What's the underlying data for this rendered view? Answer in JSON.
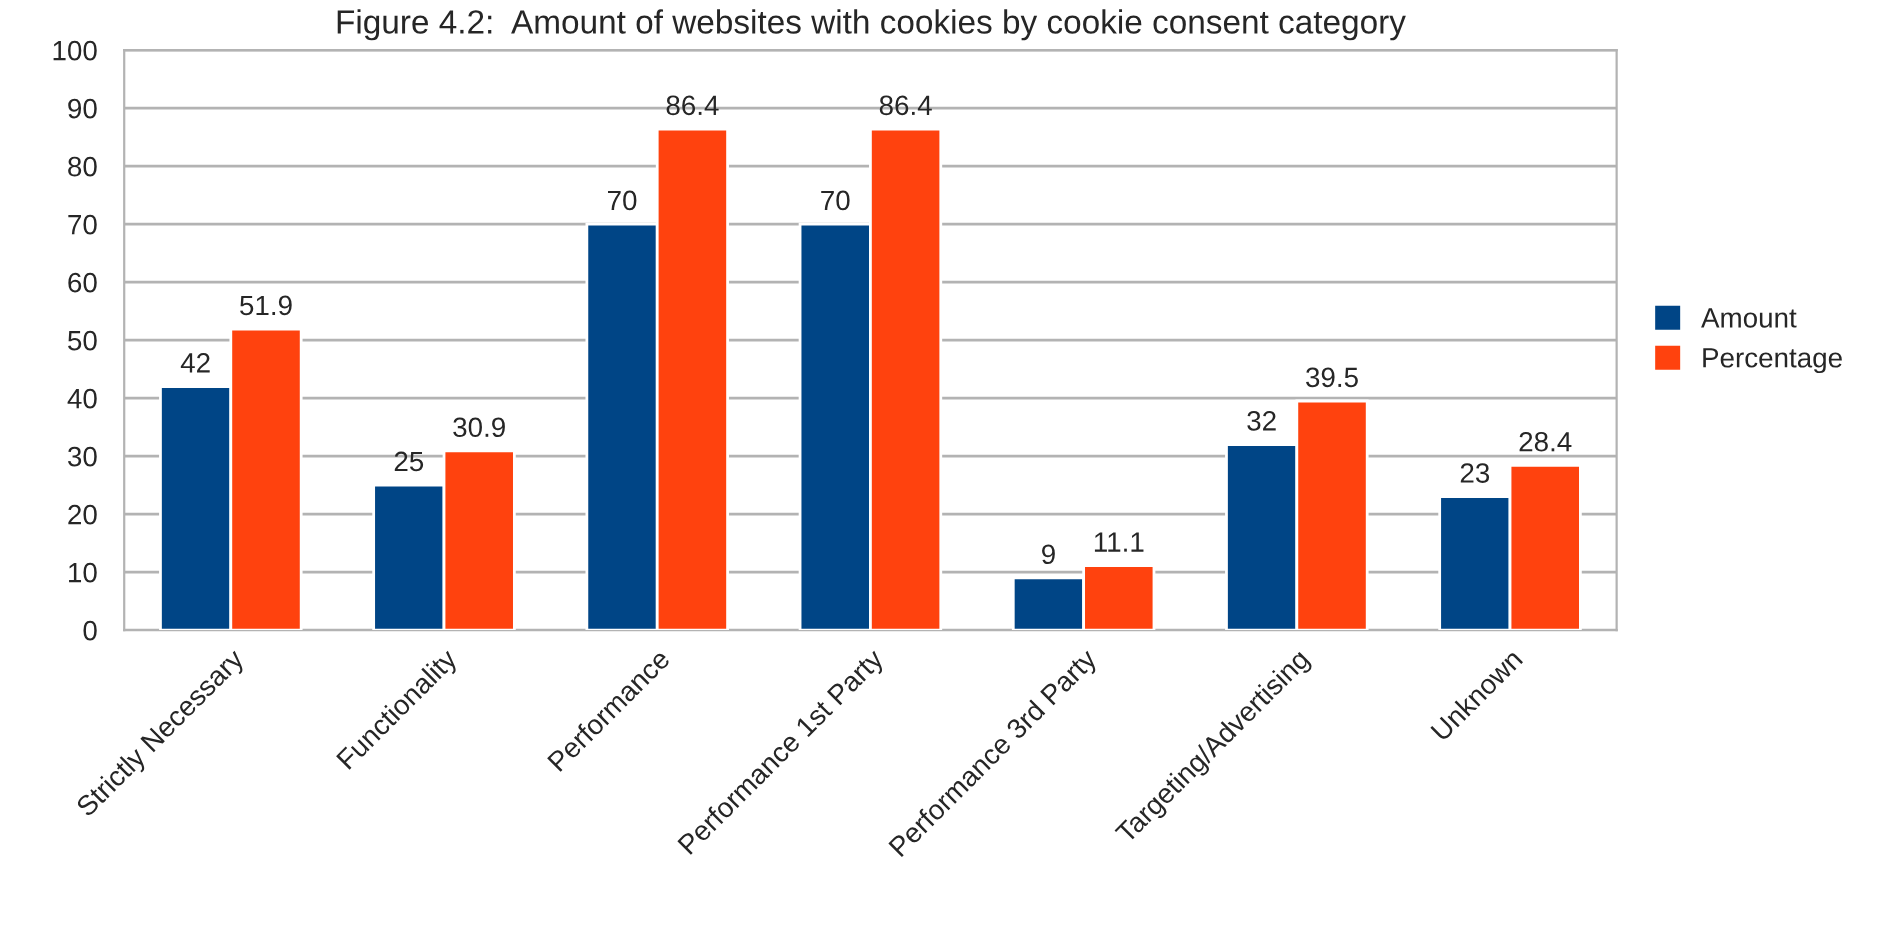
{
  "chart_data": {
    "type": "bar",
    "title": "Figure 4.2:  Amount of websites with cookies by cookie consent category",
    "categories": [
      "Strictly Necessary",
      "Functionality",
      "Performance",
      "Performance 1st Party",
      "Performance 3rd Party",
      "Targeting/Advertising",
      "Unknown"
    ],
    "series": [
      {
        "name": "Amount",
        "color": "#004586",
        "values": [
          42,
          25,
          70,
          70,
          9,
          32,
          23
        ]
      },
      {
        "name": "Percentage",
        "color": "#ff420e",
        "values": [
          51.9,
          30.9,
          86.4,
          86.4,
          11.1,
          39.5,
          28.4
        ]
      }
    ],
    "ylim": [
      0,
      100
    ],
    "yticks": [
      0,
      10,
      20,
      30,
      40,
      50,
      60,
      70,
      80,
      90,
      100
    ],
    "grid": "y",
    "legend": "right",
    "data_labels": true
  }
}
